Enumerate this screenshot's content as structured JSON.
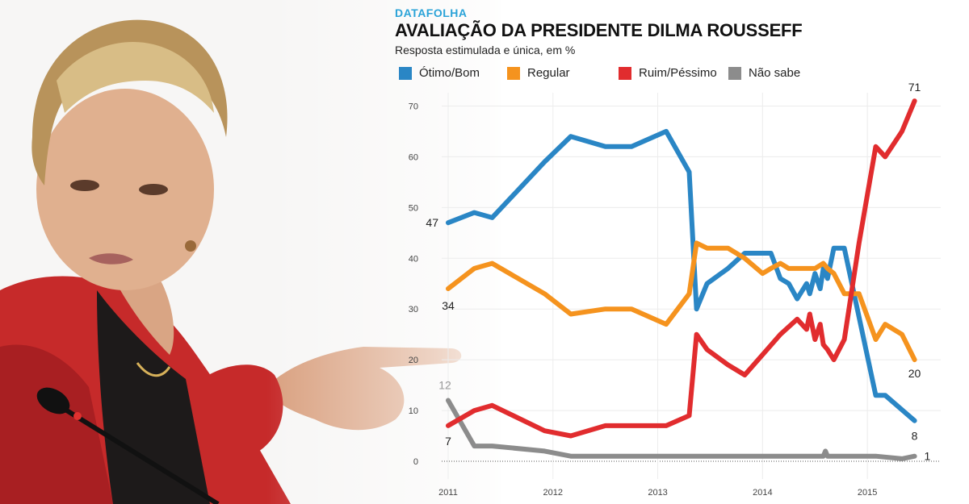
{
  "header": {
    "brand": "DATAFOLHA",
    "title": "AVALIAÇÃO DA PRESIDENTE DILMA ROUSSEFF",
    "subtitle": "Resposta estimulada e única, em %"
  },
  "colors": {
    "otimo_bom": "#2a86c5",
    "regular": "#f5931e",
    "ruim_pessimo": "#e12c2e",
    "nao_sabe": "#8c8c8c"
  },
  "photo": {
    "icons": [
      "dilma-photo",
      "microphone-icon"
    ]
  },
  "chart_data": {
    "type": "line",
    "title": "AVALIAÇÃO DA PRESIDENTE DILMA ROUSSEFF",
    "subtitle": "Resposta estimulada e única, em %",
    "xlabel": "",
    "ylabel": "",
    "x_ticks": [
      "2011",
      "2012",
      "2013",
      "2014",
      "2015"
    ],
    "y_ticks": [
      "0",
      "10",
      "20",
      "30",
      "40",
      "50",
      "60",
      "70"
    ],
    "xlim": [
      2011.0,
      2015.7
    ],
    "ylim": [
      0,
      75
    ],
    "grid": true,
    "legend_position": "top",
    "series": [
      {
        "name": "Ótimo/Bom",
        "color": "#2a86c5",
        "start_label": "47",
        "end_label": "8",
        "points": [
          [
            2011.0,
            47
          ],
          [
            2011.25,
            49
          ],
          [
            2011.42,
            48
          ],
          [
            2011.92,
            59
          ],
          [
            2012.17,
            64
          ],
          [
            2012.5,
            62
          ],
          [
            2012.75,
            62
          ],
          [
            2013.08,
            65
          ],
          [
            2013.3,
            57
          ],
          [
            2013.37,
            30
          ],
          [
            2013.47,
            35
          ],
          [
            2013.67,
            38
          ],
          [
            2013.83,
            41
          ],
          [
            2014.0,
            41
          ],
          [
            2014.08,
            41
          ],
          [
            2014.17,
            36
          ],
          [
            2014.25,
            35
          ],
          [
            2014.33,
            32
          ],
          [
            2014.42,
            35
          ],
          [
            2014.45,
            33
          ],
          [
            2014.5,
            37
          ],
          [
            2014.55,
            34
          ],
          [
            2014.58,
            38
          ],
          [
            2014.62,
            36
          ],
          [
            2014.68,
            42
          ],
          [
            2014.78,
            42
          ],
          [
            2015.08,
            13
          ],
          [
            2015.17,
            13
          ],
          [
            2015.45,
            8
          ]
        ]
      },
      {
        "name": "Regular",
        "color": "#f5931e",
        "start_label": "34",
        "end_label": "20",
        "points": [
          [
            2011.0,
            34
          ],
          [
            2011.25,
            38
          ],
          [
            2011.42,
            39
          ],
          [
            2011.92,
            33
          ],
          [
            2012.17,
            29
          ],
          [
            2012.5,
            30
          ],
          [
            2012.75,
            30
          ],
          [
            2013.08,
            27
          ],
          [
            2013.3,
            33
          ],
          [
            2013.37,
            43
          ],
          [
            2013.47,
            42
          ],
          [
            2013.67,
            42
          ],
          [
            2013.83,
            40
          ],
          [
            2014.0,
            37
          ],
          [
            2014.08,
            38
          ],
          [
            2014.17,
            39
          ],
          [
            2014.25,
            38
          ],
          [
            2014.33,
            38
          ],
          [
            2014.42,
            38
          ],
          [
            2014.5,
            38
          ],
          [
            2014.58,
            39
          ],
          [
            2014.62,
            38
          ],
          [
            2014.68,
            37
          ],
          [
            2014.78,
            33
          ],
          [
            2014.92,
            33
          ],
          [
            2015.08,
            24
          ],
          [
            2015.17,
            27
          ],
          [
            2015.33,
            25
          ],
          [
            2015.45,
            20
          ]
        ]
      },
      {
        "name": "Ruim/Péssimo",
        "color": "#e12c2e",
        "start_label": "7",
        "end_label": "71",
        "points": [
          [
            2011.0,
            7
          ],
          [
            2011.25,
            10
          ],
          [
            2011.42,
            11
          ],
          [
            2011.92,
            6
          ],
          [
            2012.17,
            5
          ],
          [
            2012.5,
            7
          ],
          [
            2012.75,
            7
          ],
          [
            2013.08,
            7
          ],
          [
            2013.3,
            9
          ],
          [
            2013.37,
            25
          ],
          [
            2013.47,
            22
          ],
          [
            2013.67,
            19
          ],
          [
            2013.83,
            17
          ],
          [
            2014.0,
            21
          ],
          [
            2014.17,
            25
          ],
          [
            2014.33,
            28
          ],
          [
            2014.42,
            26
          ],
          [
            2014.45,
            29
          ],
          [
            2014.5,
            24
          ],
          [
            2014.55,
            27
          ],
          [
            2014.58,
            23
          ],
          [
            2014.62,
            22
          ],
          [
            2014.68,
            20
          ],
          [
            2014.78,
            24
          ],
          [
            2014.92,
            43
          ],
          [
            2015.08,
            62
          ],
          [
            2015.17,
            60
          ],
          [
            2015.33,
            65
          ],
          [
            2015.45,
            71
          ]
        ]
      },
      {
        "name": "Não sabe",
        "color": "#8c8c8c",
        "start_label": "12",
        "end_label": "1",
        "points": [
          [
            2011.0,
            12
          ],
          [
            2011.25,
            3
          ],
          [
            2011.42,
            3
          ],
          [
            2011.92,
            2
          ],
          [
            2012.17,
            1
          ],
          [
            2012.5,
            1
          ],
          [
            2012.75,
            1
          ],
          [
            2013.08,
            1
          ],
          [
            2013.3,
            1
          ],
          [
            2013.37,
            1
          ],
          [
            2013.67,
            1
          ],
          [
            2014.0,
            1
          ],
          [
            2014.33,
            1
          ],
          [
            2014.58,
            1
          ],
          [
            2014.6,
            2
          ],
          [
            2014.62,
            1
          ],
          [
            2014.78,
            1
          ],
          [
            2015.08,
            1
          ],
          [
            2015.33,
            0.5
          ],
          [
            2015.45,
            1
          ]
        ]
      }
    ]
  }
}
